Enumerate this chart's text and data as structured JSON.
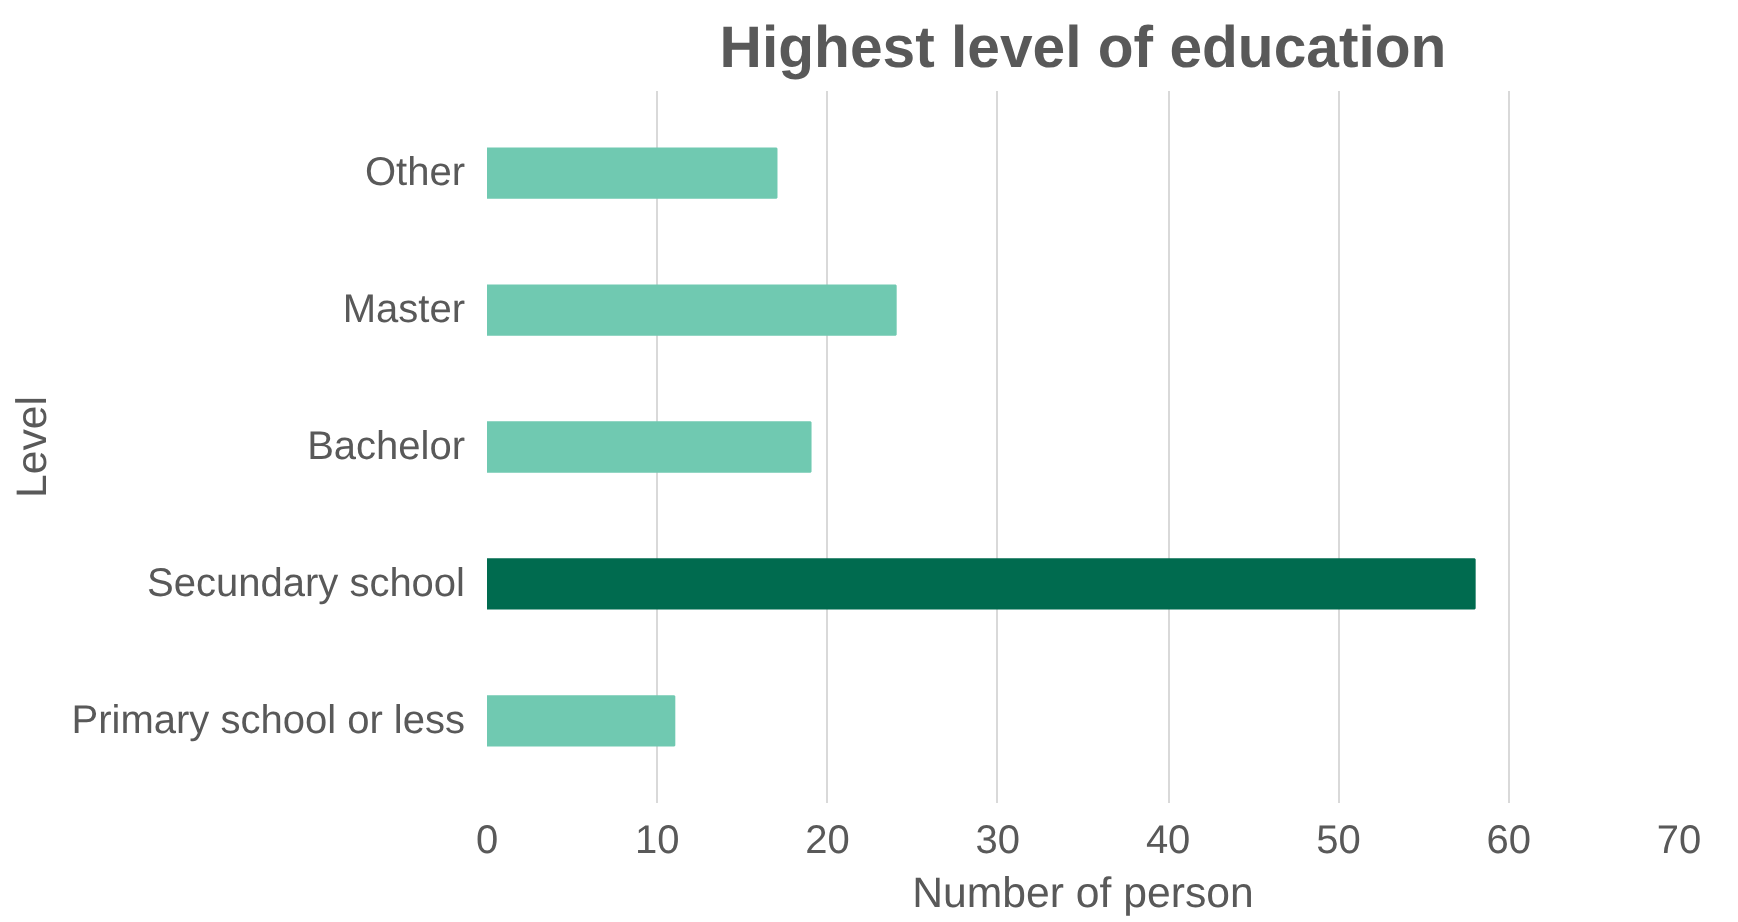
{
  "chart_data": {
    "type": "bar",
    "orientation": "horizontal",
    "title": "Highest level of education",
    "xlabel": "Number of person",
    "ylabel": "Level",
    "categories": [
      "Other",
      "Master",
      "Bachelor",
      "Secundary school",
      "Primary school or less"
    ],
    "values": [
      17,
      24,
      19,
      58,
      11
    ],
    "colors": [
      "#70c9b1",
      "#70c9b1",
      "#70c9b1",
      "#006b4f",
      "#70c9b1"
    ],
    "xlim": [
      0,
      70
    ],
    "xticks": [
      0,
      10,
      20,
      30,
      40,
      50,
      60,
      70
    ],
    "grid": "x"
  }
}
